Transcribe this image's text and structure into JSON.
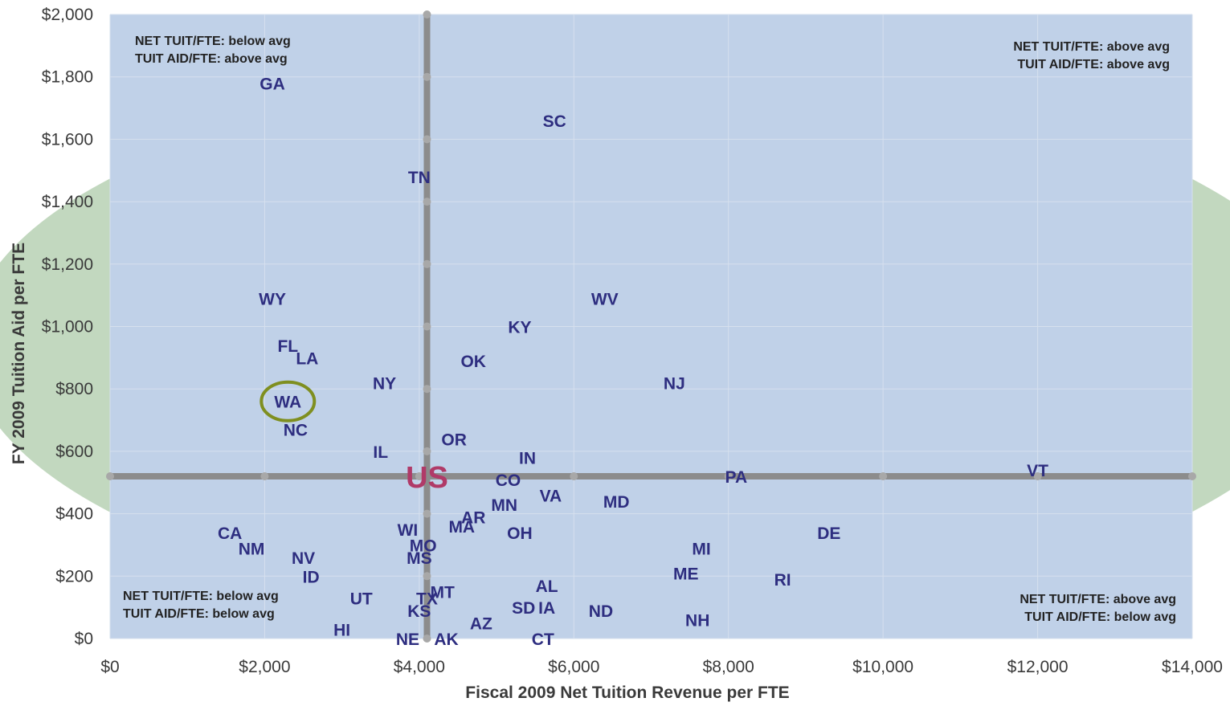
{
  "chart_data": {
    "type": "scatter",
    "xlabel": "Fiscal 2009 Net Tuition Revenue per FTE",
    "ylabel": "FY 2009 Tuition Aid per FTE",
    "xlim": [
      0,
      14000
    ],
    "ylim": [
      0,
      2000
    ],
    "x_ticks": [
      "$0",
      "$2,000",
      "$4,000",
      "$6,000",
      "$8,000",
      "$10,000",
      "$12,000",
      "$14,000"
    ],
    "y_ticks": [
      "$0",
      "$200",
      "$400",
      "$600",
      "$800",
      "$1,000",
      "$1,200",
      "$1,400",
      "$1,600",
      "$1,800",
      "$2,000"
    ],
    "grid": true,
    "reference_lines": {
      "x": 4100,
      "y": 520
    },
    "reference_label": "US",
    "highlighted_point": "WA",
    "colors": {
      "plot_background": "#c0d1e8",
      "ellipse": "#c2d8bf",
      "reference_lines": "#8c8c8c",
      "point_labels": "#2e2e80",
      "us_label": "#b03a68",
      "highlight_ring": "#7f8f20"
    },
    "quadrant_notes": {
      "top_left": [
        "NET TUIT/FTE: below avg",
        "TUIT AID/FTE: above avg"
      ],
      "top_right": [
        "NET TUIT/FTE: above avg",
        "TUIT AID/FTE: above avg"
      ],
      "bottom_left": [
        "NET TUIT/FTE: below avg",
        "TUIT AID/FTE: below avg"
      ],
      "bottom_right": [
        "NET TUIT/FTE: above avg",
        "TUIT AID/FTE: below avg"
      ]
    },
    "points": [
      {
        "label": "GA",
        "x": 2100,
        "y": 1780
      },
      {
        "label": "SC",
        "x": 5750,
        "y": 1660
      },
      {
        "label": "TN",
        "x": 4000,
        "y": 1480
      },
      {
        "label": "WY",
        "x": 2100,
        "y": 1090
      },
      {
        "label": "WV",
        "x": 6400,
        "y": 1090
      },
      {
        "label": "KY",
        "x": 5300,
        "y": 1000
      },
      {
        "label": "FL",
        "x": 2300,
        "y": 940
      },
      {
        "label": "LA",
        "x": 2550,
        "y": 900
      },
      {
        "label": "OK",
        "x": 4700,
        "y": 890
      },
      {
        "label": "NY",
        "x": 3550,
        "y": 820
      },
      {
        "label": "NJ",
        "x": 7300,
        "y": 820
      },
      {
        "label": "WA",
        "x": 2300,
        "y": 760
      },
      {
        "label": "NC",
        "x": 2400,
        "y": 670
      },
      {
        "label": "OR",
        "x": 4450,
        "y": 640
      },
      {
        "label": "IL",
        "x": 3500,
        "y": 600
      },
      {
        "label": "IN",
        "x": 5400,
        "y": 580
      },
      {
        "label": "VT",
        "x": 12000,
        "y": 540
      },
      {
        "label": "PA",
        "x": 8100,
        "y": 520
      },
      {
        "label": "CO",
        "x": 5150,
        "y": 510
      },
      {
        "label": "VA",
        "x": 5700,
        "y": 460
      },
      {
        "label": "MD",
        "x": 6550,
        "y": 440
      },
      {
        "label": "MN",
        "x": 5100,
        "y": 430
      },
      {
        "label": "AR",
        "x": 4700,
        "y": 390
      },
      {
        "label": "MA",
        "x": 4550,
        "y": 360
      },
      {
        "label": "WI",
        "x": 3850,
        "y": 350
      },
      {
        "label": "OH",
        "x": 5300,
        "y": 340
      },
      {
        "label": "DE",
        "x": 9300,
        "y": 340
      },
      {
        "label": "CA",
        "x": 1550,
        "y": 340
      },
      {
        "label": "NM",
        "x": 1830,
        "y": 290
      },
      {
        "label": "MO",
        "x": 4050,
        "y": 300
      },
      {
        "label": "MI",
        "x": 7650,
        "y": 290
      },
      {
        "label": "MS",
        "x": 4000,
        "y": 260
      },
      {
        "label": "NV",
        "x": 2500,
        "y": 260
      },
      {
        "label": "ME",
        "x": 7450,
        "y": 210
      },
      {
        "label": "ID",
        "x": 2600,
        "y": 200
      },
      {
        "label": "RI",
        "x": 8700,
        "y": 190
      },
      {
        "label": "AL",
        "x": 5650,
        "y": 170
      },
      {
        "label": "MT",
        "x": 4300,
        "y": 150
      },
      {
        "label": "UT",
        "x": 3250,
        "y": 130
      },
      {
        "label": "TX",
        "x": 4100,
        "y": 130
      },
      {
        "label": "SD",
        "x": 5350,
        "y": 100
      },
      {
        "label": "IA",
        "x": 5650,
        "y": 100
      },
      {
        "label": "KS",
        "x": 4000,
        "y": 90
      },
      {
        "label": "ND",
        "x": 6350,
        "y": 90
      },
      {
        "label": "NH",
        "x": 7600,
        "y": 60
      },
      {
        "label": "AZ",
        "x": 4800,
        "y": 50
      },
      {
        "label": "HI",
        "x": 3000,
        "y": 30
      },
      {
        "label": "NE",
        "x": 3850,
        "y": 0
      },
      {
        "label": "AK",
        "x": 4350,
        "y": 0
      },
      {
        "label": "CT",
        "x": 5600,
        "y": 0
      }
    ]
  }
}
